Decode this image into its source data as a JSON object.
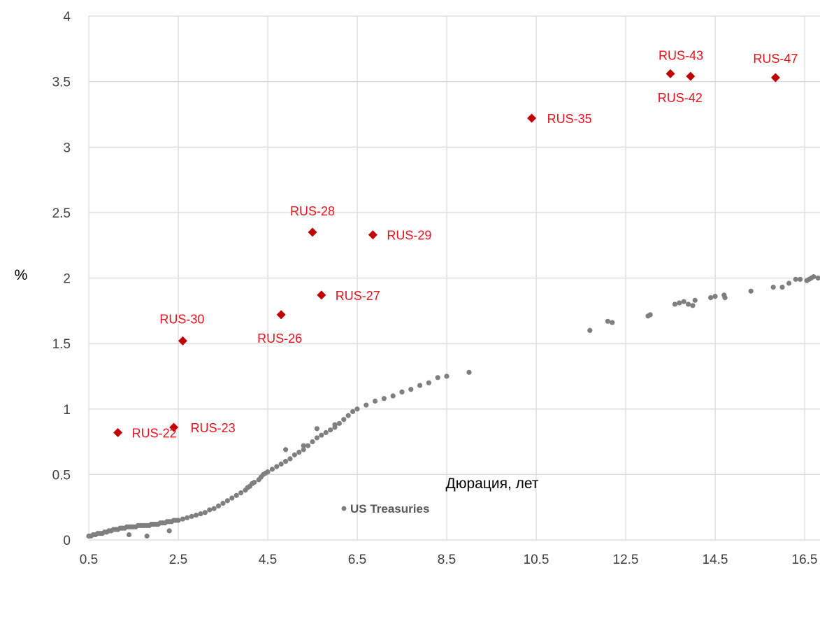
{
  "chart_data": {
    "type": "scatter",
    "title": "",
    "xlabel": "Дюрация, лет",
    "ylabel": "%",
    "xlim": [
      0.5,
      17
    ],
    "ylim": [
      0,
      4
    ],
    "x_ticks": [
      "0.5",
      "2.5",
      "4.5",
      "6.5",
      "8.5",
      "10.5",
      "12.5",
      "14.5",
      "16.5"
    ],
    "y_ticks": [
      "0",
      "0.5",
      "1",
      "1.5",
      "2",
      "2.5",
      "3",
      "3.5",
      "4"
    ],
    "grid": true,
    "legend": {
      "position": "bottom",
      "entries": [
        "US Treasuries"
      ]
    },
    "colors": {
      "treasuries": "#7f7f7f",
      "russia": "#c00000",
      "russia_label": "#e8121b",
      "grid": "#d9d9d9"
    },
    "series": [
      {
        "name": "US Treasuries",
        "marker": "circle",
        "points": [
          [
            0.5,
            0.03
          ],
          [
            0.55,
            0.03
          ],
          [
            0.6,
            0.04
          ],
          [
            0.65,
            0.04
          ],
          [
            0.7,
            0.05
          ],
          [
            0.75,
            0.05
          ],
          [
            0.8,
            0.05
          ],
          [
            0.85,
            0.06
          ],
          [
            0.9,
            0.06
          ],
          [
            0.95,
            0.07
          ],
          [
            1.0,
            0.07
          ],
          [
            1.05,
            0.08
          ],
          [
            1.1,
            0.08
          ],
          [
            1.15,
            0.08
          ],
          [
            1.2,
            0.09
          ],
          [
            1.25,
            0.09
          ],
          [
            1.3,
            0.09
          ],
          [
            1.35,
            0.1
          ],
          [
            1.4,
            0.1
          ],
          [
            1.45,
            0.1
          ],
          [
            1.5,
            0.1
          ],
          [
            1.55,
            0.1
          ],
          [
            1.6,
            0.11
          ],
          [
            1.65,
            0.11
          ],
          [
            1.7,
            0.11
          ],
          [
            1.75,
            0.11
          ],
          [
            1.8,
            0.11
          ],
          [
            1.85,
            0.11
          ],
          [
            1.9,
            0.12
          ],
          [
            1.95,
            0.12
          ],
          [
            2.0,
            0.12
          ],
          [
            2.05,
            0.12
          ],
          [
            2.1,
            0.13
          ],
          [
            2.15,
            0.13
          ],
          [
            2.2,
            0.13
          ],
          [
            2.25,
            0.14
          ],
          [
            2.3,
            0.14
          ],
          [
            2.35,
            0.14
          ],
          [
            2.4,
            0.15
          ],
          [
            2.45,
            0.15
          ],
          [
            2.5,
            0.15
          ],
          [
            2.6,
            0.16
          ],
          [
            2.7,
            0.17
          ],
          [
            2.8,
            0.18
          ],
          [
            2.9,
            0.19
          ],
          [
            3.0,
            0.2
          ],
          [
            3.1,
            0.21
          ],
          [
            3.2,
            0.23
          ],
          [
            3.3,
            0.24
          ],
          [
            3.4,
            0.26
          ],
          [
            3.5,
            0.28
          ],
          [
            3.6,
            0.3
          ],
          [
            3.7,
            0.32
          ],
          [
            3.8,
            0.34
          ],
          [
            3.9,
            0.36
          ],
          [
            4.0,
            0.38
          ],
          [
            4.05,
            0.4
          ],
          [
            4.1,
            0.41
          ],
          [
            4.15,
            0.43
          ],
          [
            4.2,
            0.44
          ],
          [
            4.3,
            0.46
          ],
          [
            4.35,
            0.48
          ],
          [
            4.4,
            0.5
          ],
          [
            4.45,
            0.51
          ],
          [
            4.5,
            0.52
          ],
          [
            4.6,
            0.54
          ],
          [
            4.7,
            0.56
          ],
          [
            4.8,
            0.58
          ],
          [
            4.9,
            0.6
          ],
          [
            5.0,
            0.62
          ],
          [
            5.1,
            0.65
          ],
          [
            5.2,
            0.67
          ],
          [
            5.3,
            0.69
          ],
          [
            5.4,
            0.72
          ],
          [
            5.5,
            0.75
          ],
          [
            5.6,
            0.78
          ],
          [
            5.7,
            0.8
          ],
          [
            5.8,
            0.82
          ],
          [
            5.9,
            0.84
          ],
          [
            6.0,
            0.86
          ],
          [
            6.1,
            0.89
          ],
          [
            6.2,
            0.92
          ],
          [
            6.3,
            0.95
          ],
          [
            6.4,
            0.98
          ],
          [
            6.5,
            1.0
          ],
          [
            6.7,
            1.03
          ],
          [
            6.9,
            1.06
          ],
          [
            7.1,
            1.08
          ],
          [
            7.3,
            1.1
          ],
          [
            7.5,
            1.13
          ],
          [
            7.7,
            1.15
          ],
          [
            7.9,
            1.18
          ],
          [
            8.1,
            1.2
          ],
          [
            8.3,
            1.24
          ],
          [
            8.5,
            1.25
          ],
          [
            9.0,
            1.28
          ],
          [
            1.4,
            0.04
          ],
          [
            1.8,
            0.03
          ],
          [
            2.3,
            0.07
          ],
          [
            4.9,
            0.69
          ],
          [
            5.3,
            0.72
          ],
          [
            5.6,
            0.85
          ],
          [
            6.0,
            0.88
          ],
          [
            11.7,
            1.6
          ],
          [
            12.1,
            1.67
          ],
          [
            12.2,
            1.66
          ],
          [
            13.0,
            1.71
          ],
          [
            13.05,
            1.72
          ],
          [
            13.6,
            1.8
          ],
          [
            13.7,
            1.81
          ],
          [
            13.8,
            1.82
          ],
          [
            13.9,
            1.8
          ],
          [
            14.0,
            1.79
          ],
          [
            14.05,
            1.83
          ],
          [
            14.4,
            1.85
          ],
          [
            14.5,
            1.86
          ],
          [
            14.7,
            1.87
          ],
          [
            14.72,
            1.85
          ],
          [
            15.3,
            1.9
          ],
          [
            15.8,
            1.93
          ],
          [
            16.0,
            1.93
          ],
          [
            16.15,
            1.96
          ],
          [
            16.3,
            1.99
          ],
          [
            16.4,
            1.99
          ],
          [
            16.55,
            1.98
          ],
          [
            16.6,
            1.99
          ],
          [
            16.65,
            2.0
          ],
          [
            16.7,
            2.01
          ],
          [
            16.8,
            2.0
          ],
          [
            16.9,
            2.01
          ]
        ]
      },
      {
        "name": "",
        "marker": "diamond",
        "points": [
          {
            "x": 1.15,
            "y": 0.82,
            "label": "RUS-22"
          },
          {
            "x": 2.4,
            "y": 0.86,
            "label": "RUS-23"
          },
          {
            "x": 2.6,
            "y": 1.52,
            "label": "RUS-30"
          },
          {
            "x": 4.8,
            "y": 1.72,
            "label": "RUS-26"
          },
          {
            "x": 5.5,
            "y": 2.35,
            "label": "RUS-28"
          },
          {
            "x": 5.7,
            "y": 1.87,
            "label": "RUS-27"
          },
          {
            "x": 6.85,
            "y": 2.33,
            "label": "RUS-29"
          },
          {
            "x": 10.4,
            "y": 3.22,
            "label": "RUS-35"
          },
          {
            "x": 13.5,
            "y": 3.56,
            "label": "RUS-43"
          },
          {
            "x": 13.95,
            "y": 3.54,
            "label": "RUS-42"
          },
          {
            "x": 15.85,
            "y": 3.53,
            "label": "RUS-47"
          }
        ]
      }
    ]
  }
}
